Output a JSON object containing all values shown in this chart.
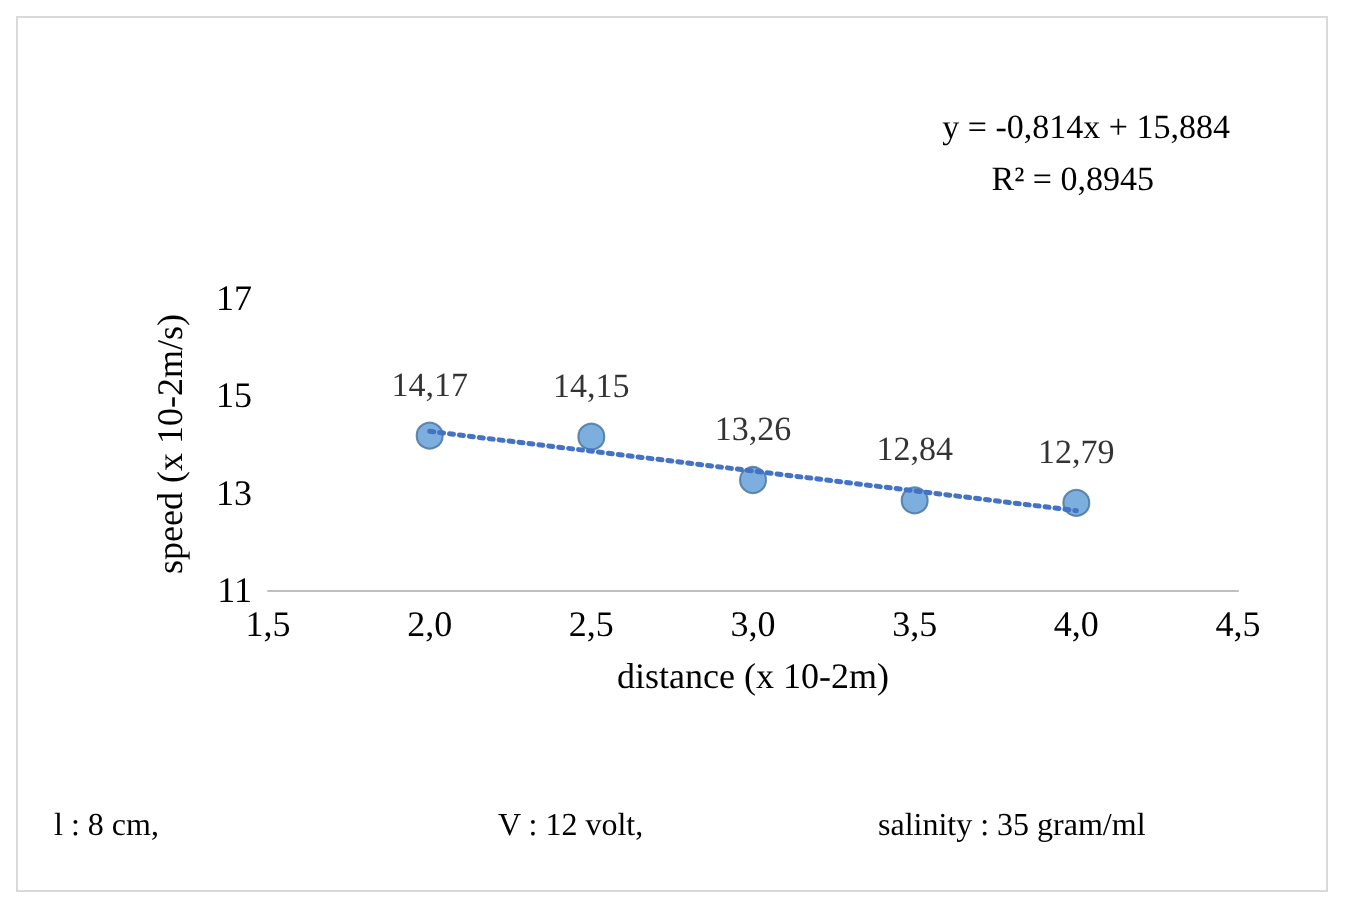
{
  "chart_data": {
    "type": "scatter",
    "xlabel": "distance (x 10-2m)",
    "ylabel": "speed (x 10-2m/s)",
    "x": [
      2.0,
      2.5,
      3.0,
      3.5,
      4.0
    ],
    "series": [
      {
        "type": "scatter",
        "color": "#5b9bd5",
        "values": [
          14.17,
          14.15,
          13.26,
          12.84,
          12.79
        ],
        "value_labels": [
          "14,17",
          "14,15",
          "13,26",
          "12,84",
          "12,79"
        ],
        "marker": "circle"
      },
      {
        "type": "line",
        "color": "#4472c4",
        "x": [
          2.0,
          4.0
        ],
        "values": [
          14.26,
          12.63
        ],
        "line_style": "dotted",
        "marker": "none"
      }
    ],
    "xlim": [
      1.5,
      4.5
    ],
    "xticks": [
      {
        "value": 1.5,
        "label": "1,5"
      },
      {
        "value": 2.0,
        "label": "2,0"
      },
      {
        "value": 2.5,
        "label": "2,5"
      },
      {
        "value": 3.0,
        "label": "3,0"
      },
      {
        "value": 3.5,
        "label": "3,5"
      },
      {
        "value": 4.0,
        "label": "4,0"
      },
      {
        "value": 4.5,
        "label": "4,5"
      }
    ],
    "ylim": [
      11,
      17
    ],
    "yticks": [
      11,
      13,
      15,
      17
    ],
    "grid": false,
    "annotations": [
      "y = -0,814x + 15,884",
      "R² = 0,8945",
      "l : 8 cm,",
      "V : 12 volt,",
      "salinity : 35 gram/ml"
    ]
  }
}
